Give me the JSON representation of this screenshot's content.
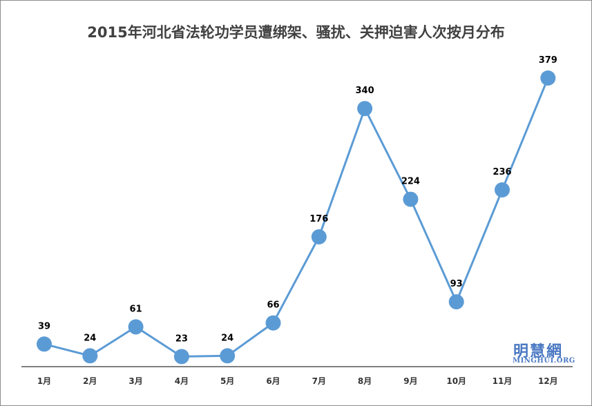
{
  "chart_data": {
    "type": "line",
    "title": "2015年河北省法轮功学员遭绑架、骚扰、关押迫害人次按月分布",
    "categories": [
      "1月",
      "2月",
      "3月",
      "4月",
      "5月",
      "6月",
      "7月",
      "8月",
      "9月",
      "10月",
      "11月",
      "12月"
    ],
    "values": [
      39,
      24,
      61,
      23,
      24,
      66,
      176,
      340,
      224,
      93,
      236,
      379
    ],
    "xlabel": "",
    "ylabel": "",
    "grid": false,
    "legend": "none",
    "line_color": "#5b9bd5",
    "marker_color": "#5b9bd5"
  },
  "watermark": {
    "chinese": "明慧網",
    "english": "MINGHUI.ORG",
    "color": "#4a78c2"
  }
}
